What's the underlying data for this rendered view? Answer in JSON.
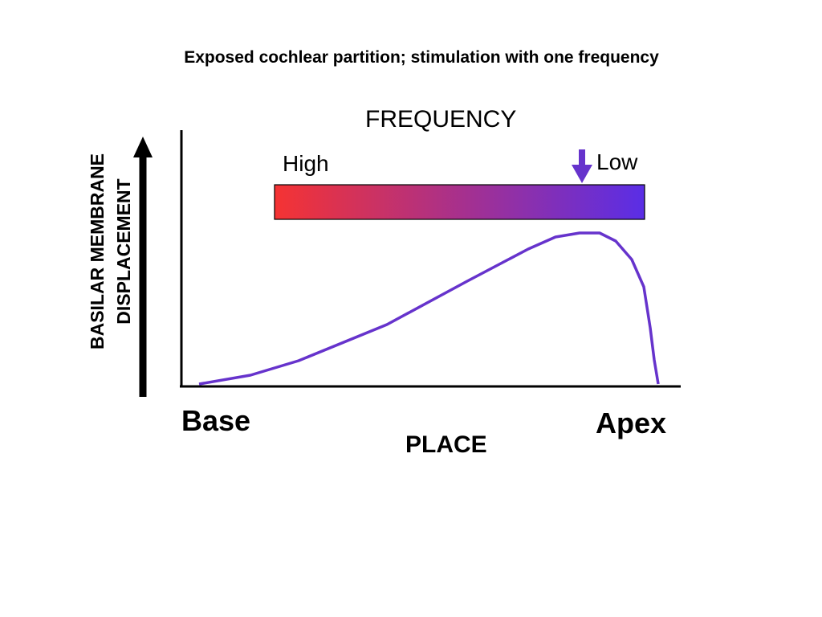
{
  "title": "Exposed cochlear partition; stimulation with one frequency",
  "frequency_bar": {
    "title": "FREQUENCY",
    "high_label": "High",
    "low_label": "Low",
    "gradient_start_color": "#f53333",
    "gradient_end_color": "#5a2ee6"
  },
  "axes": {
    "y_label_line1": "BASILAR MEMBRANE",
    "y_label_line2": "DISPLACEMENT",
    "x_label": "PLACE",
    "x_start_label": "Base",
    "x_end_label": "Apex"
  },
  "curve_color": "#6633cc",
  "marker_arrow_color": "#6633cc"
}
